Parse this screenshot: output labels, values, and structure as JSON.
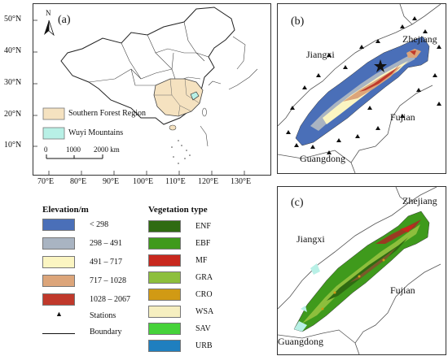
{
  "panel_a": {
    "label": "(a)",
    "north_letter": "N",
    "lat_ticks": [
      "50°N",
      "40°N",
      "30°N",
      "20°N",
      "10°N"
    ],
    "lon_ticks": [
      "70°E",
      "80°E",
      "90°E",
      "100°E",
      "110°E",
      "120°E",
      "130°E"
    ],
    "legend": [
      {
        "label": "Southern Forest Region",
        "color": "#f5e2c0"
      },
      {
        "label": "Wuyi Mountains",
        "color": "#b8f0e6"
      }
    ],
    "scalebar": {
      "labels": [
        "0",
        "1000",
        "2000 km"
      ]
    }
  },
  "panel_b": {
    "label": "(b)",
    "regions": {
      "jiangxi": "Jiangxi",
      "zhejiang": "Zhejiang",
      "fujian": "Fujian",
      "guangdong": "Guangdong"
    }
  },
  "panel_c": {
    "label": "(c)",
    "regions": {
      "jiangxi": "Jiangxi",
      "zhejiang": "Zhejiang",
      "fujian": "Fujian",
      "guangdong": "Guangdong"
    }
  },
  "elevation_legend": {
    "title": "Elevation/m",
    "items": [
      {
        "label": "< 298",
        "color": "#4a6fb8"
      },
      {
        "label": "298 – 491",
        "color": "#a9b4c2"
      },
      {
        "label": "491 – 717",
        "color": "#fbf5c2"
      },
      {
        "label": "717 – 1028",
        "color": "#dca57a"
      },
      {
        "label": "1028 – 2067",
        "color": "#c0392b"
      }
    ],
    "stations_label": "Stations",
    "boundary_label": "Boundary"
  },
  "vegetation_legend": {
    "title": "Vegetation type",
    "items": [
      {
        "label": "ENF",
        "color": "#2f6b12"
      },
      {
        "label": "EBF",
        "color": "#3f9a1c"
      },
      {
        "label": "MF",
        "color": "#c8281e"
      },
      {
        "label": "GRA",
        "color": "#8dbf3c"
      },
      {
        "label": "CRO",
        "color": "#d19a14"
      },
      {
        "label": "WSA",
        "color": "#f6efc0"
      },
      {
        "label": "SAV",
        "color": "#46d23a"
      },
      {
        "label": "URB",
        "color": "#1f7fbf"
      }
    ]
  }
}
